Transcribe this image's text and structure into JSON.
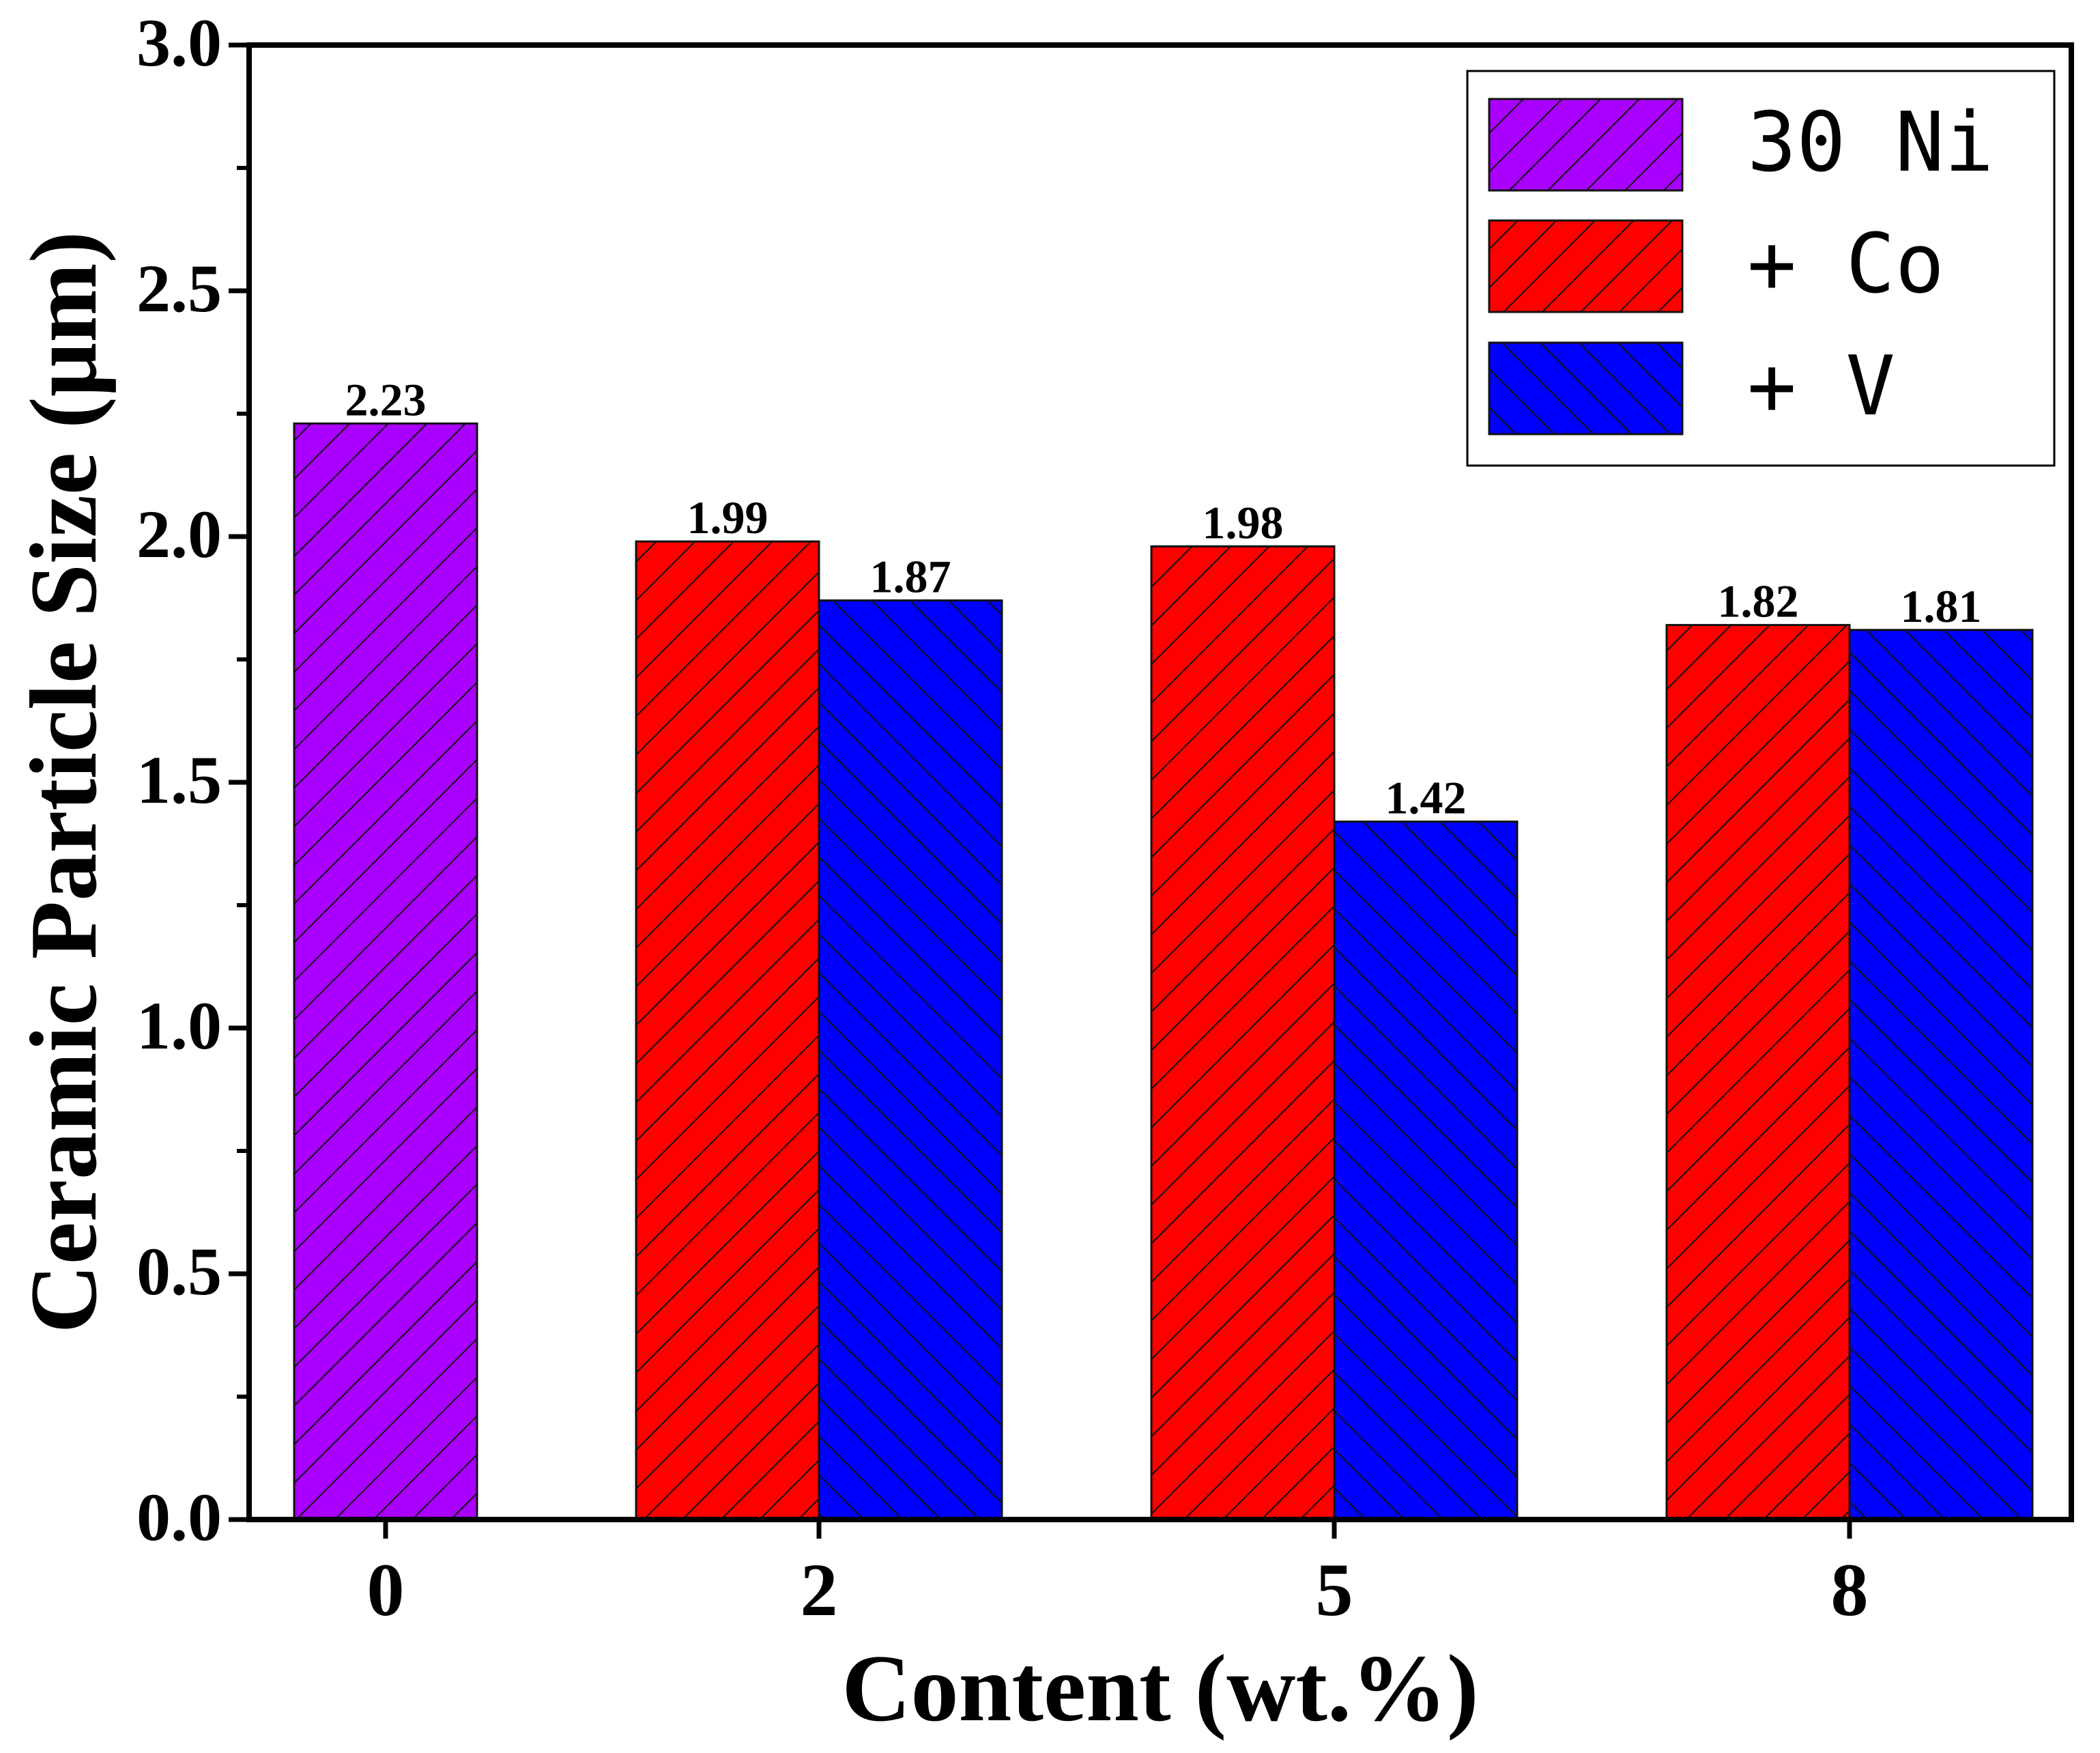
{
  "chart_data": {
    "type": "bar",
    "title": "",
    "xlabel": "Content (wt.%)",
    "ylabel": "Ceramic Particle Size (μm)",
    "ylim": [
      0,
      3.0
    ],
    "y_ticks": [
      "0.0",
      "0.5",
      "1.0",
      "1.5",
      "2.0",
      "2.5",
      "3.0"
    ],
    "categories": [
      "0",
      "2",
      "5",
      "8"
    ],
    "series": [
      {
        "name": "30 Ni",
        "color": "#aa00ff",
        "hatch": "forward",
        "values": [
          2.23,
          null,
          null,
          null
        ],
        "labels": [
          "2.23",
          null,
          null,
          null
        ]
      },
      {
        "name": "+ Co",
        "color": "#ff0000",
        "hatch": "forward",
        "values": [
          null,
          1.99,
          1.98,
          1.82
        ],
        "labels": [
          null,
          "1.99",
          "1.98",
          "1.82"
        ]
      },
      {
        "name": "+ V",
        "color": "#0000ff",
        "hatch": "backward",
        "values": [
          null,
          1.87,
          1.42,
          1.81
        ],
        "labels": [
          null,
          "1.87",
          "1.42",
          "1.81"
        ]
      }
    ],
    "legend_position": "top-right"
  }
}
